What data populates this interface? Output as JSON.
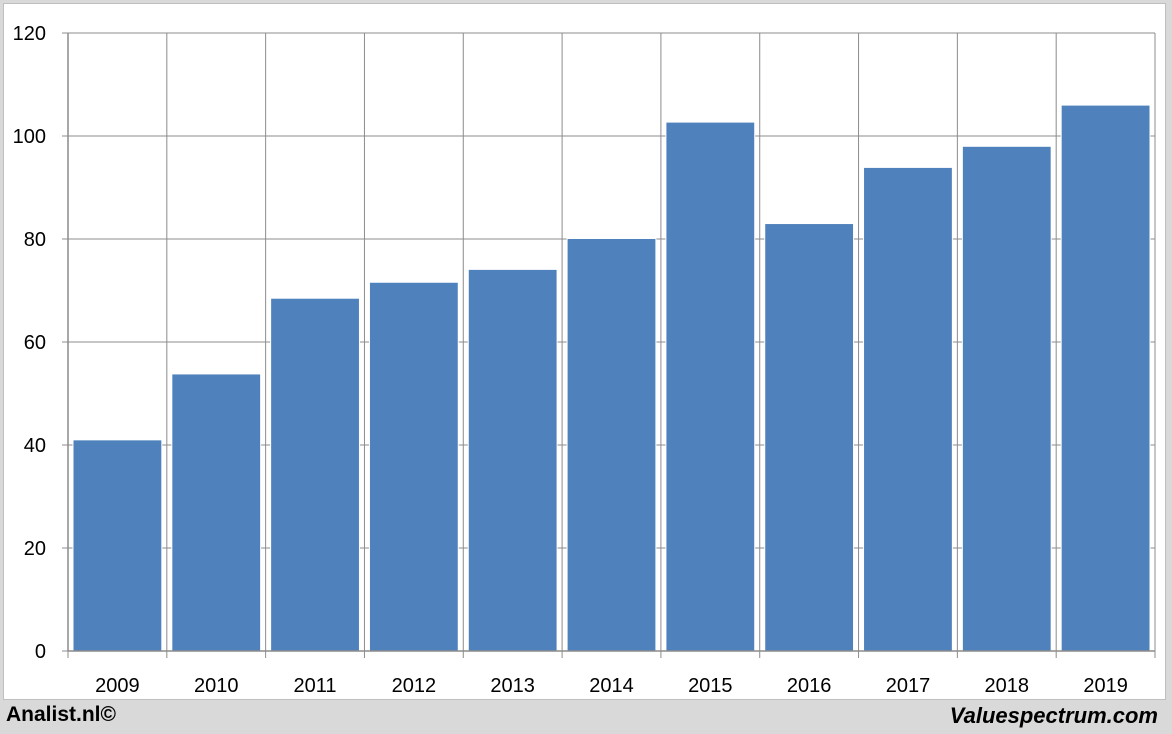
{
  "chart_data": {
    "type": "bar",
    "categories": [
      "2009",
      "2010",
      "2011",
      "2012",
      "2013",
      "2014",
      "2015",
      "2016",
      "2017",
      "2018",
      "2019"
    ],
    "series": [
      {
        "values": [
          41.0,
          53.8,
          68.5,
          71.6,
          74.1,
          80.1,
          102.7,
          83.0,
          93.9,
          98.0,
          106.0
        ]
      }
    ],
    "ylim": [
      0,
      120
    ],
    "yticks": [
      0,
      20,
      40,
      60,
      80,
      100,
      120
    ],
    "grid": true,
    "bar_color": "#4f81bd",
    "grid_color": "#8c8c8c"
  },
  "footer": {
    "left": "Analist.nl©",
    "right": "Valuespectrum.com"
  }
}
